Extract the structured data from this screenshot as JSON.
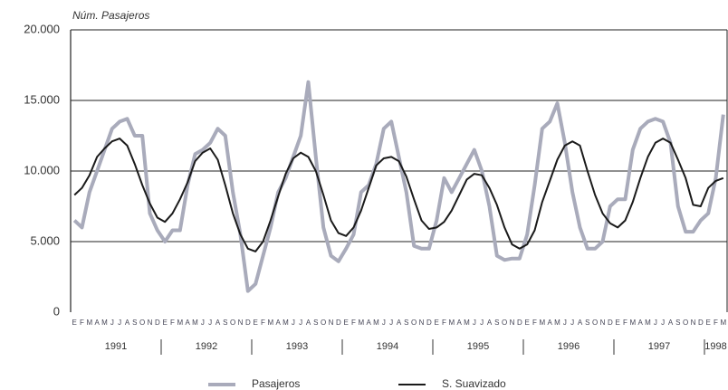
{
  "chart_data": {
    "type": "line",
    "y_label": "Núm. Pasajeros",
    "categories": [
      "E",
      "F",
      "M",
      "A",
      "M",
      "J",
      "J",
      "A",
      "S",
      "O",
      "N",
      "D",
      "E",
      "F",
      "M",
      "A",
      "M",
      "J",
      "J",
      "A",
      "S",
      "O",
      "N",
      "D",
      "E",
      "F",
      "M",
      "A",
      "M",
      "J",
      "J",
      "A",
      "S",
      "O",
      "N",
      "D",
      "E",
      "F",
      "M",
      "A",
      "M",
      "J",
      "J",
      "A",
      "S",
      "O",
      "N",
      "D",
      "E",
      "F",
      "M",
      "A",
      "M",
      "J",
      "J",
      "A",
      "S",
      "O",
      "N",
      "D",
      "E",
      "F",
      "M",
      "A",
      "M",
      "J",
      "J",
      "A",
      "S",
      "O",
      "N",
      "D",
      "E",
      "F",
      "M",
      "A",
      "M",
      "J",
      "J",
      "A",
      "S",
      "O",
      "N",
      "D",
      "E",
      "F",
      "M"
    ],
    "years": [
      "1991",
      "1992",
      "1993",
      "1994",
      "1995",
      "1996",
      "1997",
      "1998"
    ],
    "series": [
      {
        "name": "Pasajeros",
        "color": "#a9abbb",
        "values": [
          6500,
          6000,
          8500,
          10000,
          11500,
          13000,
          13500,
          13700,
          12500,
          12500,
          7000,
          5800,
          5000,
          5800,
          5800,
          9000,
          11200,
          11500,
          12000,
          13000,
          12500,
          8500,
          5500,
          1500,
          2000,
          4000,
          6000,
          8500,
          9500,
          11000,
          12500,
          16300,
          11000,
          6000,
          4000,
          3600,
          4500,
          5500,
          8500,
          9000,
          10500,
          13000,
          13500,
          11000,
          8500,
          4700,
          4500,
          4500,
          6500,
          9500,
          8500,
          9500,
          10500,
          11500,
          10000,
          7500,
          4000,
          3700,
          3800,
          3800,
          5500,
          9000,
          13000,
          13500,
          14800,
          12000,
          8500,
          6000,
          4500,
          4500,
          5000,
          7500,
          8000,
          8000,
          11500,
          13000,
          13500,
          13700,
          13500,
          12000,
          7500,
          5700,
          5700,
          6500,
          7000,
          9500,
          14000
        ]
      },
      {
        "name": "S. Suavizado",
        "color": "#1a1a1a",
        "values": [
          8300,
          8800,
          9700,
          11000,
          11600,
          12100,
          12300,
          11800,
          10500,
          9000,
          7700,
          6700,
          6400,
          7000,
          8000,
          9200,
          10700,
          11300,
          11600,
          10800,
          9000,
          7000,
          5500,
          4500,
          4300,
          5000,
          6500,
          8200,
          9800,
          10900,
          11300,
          11000,
          10000,
          8300,
          6500,
          5600,
          5400,
          6000,
          7200,
          8800,
          10400,
          10900,
          11000,
          10700,
          9600,
          8000,
          6500,
          5900,
          6000,
          6400,
          7200,
          8300,
          9400,
          9800,
          9700,
          8800,
          7600,
          6000,
          4800,
          4500,
          4800,
          5800,
          7800,
          9300,
          10800,
          11800,
          12100,
          11800,
          10000,
          8300,
          7000,
          6300,
          6000,
          6500,
          7800,
          9500,
          11000,
          12000,
          12300,
          12000,
          10800,
          9500,
          7600,
          7500,
          8800,
          9300,
          9500
        ]
      }
    ],
    "ylim": [
      0,
      20000
    ],
    "yticks": [
      0,
      {
        "value": 5000,
        "label": "5.000"
      },
      {
        "value": 10000,
        "label": "10.000"
      },
      {
        "value": 15000,
        "label": "15.000"
      },
      {
        "value": 20000,
        "label": "20.000"
      }
    ],
    "grid": true
  }
}
